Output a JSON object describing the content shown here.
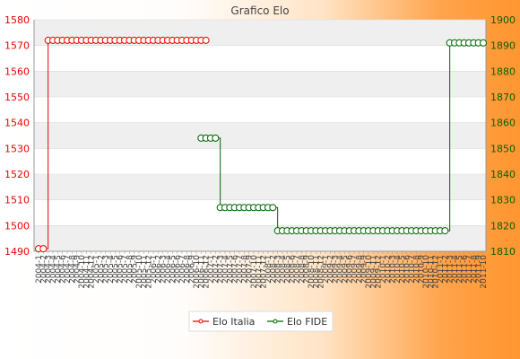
{
  "chart_data": {
    "type": "line",
    "title": "Grafico Elo",
    "yleft": {
      "lim": [
        1490,
        1580
      ],
      "ticks": [
        1490,
        1500,
        1510,
        1520,
        1530,
        1540,
        1550,
        1560,
        1570,
        1580
      ]
    },
    "yright": {
      "lim": [
        1810,
        1900
      ],
      "ticks": [
        1810,
        1820,
        1830,
        1840,
        1850,
        1860,
        1870,
        1880,
        1890,
        1900
      ]
    },
    "x_count": 94,
    "x_labels": [
      "2004-1",
      "2004-2",
      "2004-3",
      "2004-4",
      "2004-5",
      "2004-6",
      "2004-7",
      "2004-8",
      "2004-9",
      "2004-10",
      "2004-11",
      "2004-12",
      "2005-1",
      "2005-2",
      "2005-3",
      "2005-4",
      "2005-5",
      "2005-6",
      "2005-7",
      "2005-8",
      "2005-9",
      "2005-10",
      "2005-11",
      "2005-12",
      "2006-1",
      "2006-2",
      "2006-3",
      "2006-4",
      "2006-5",
      "2006-6",
      "2006-7",
      "2006-8",
      "2006-9",
      "2006-10",
      "2006-11",
      "2006-12",
      "2007-1",
      "2007-2",
      "2007-3",
      "2007-4",
      "2007-5",
      "2007-6",
      "2007-7",
      "2007-8",
      "2007-9",
      "2007-10",
      "2007-11",
      "2007-12",
      "2008-1",
      "2008-2",
      "2008-3",
      "2008-4",
      "2008-5",
      "2008-6",
      "2008-7",
      "2008-8",
      "2008-9",
      "2008-10",
      "2008-11",
      "2008-12",
      "2009-1",
      "2009-2",
      "2009-3",
      "2009-4",
      "2009-5",
      "2009-6",
      "2009-7",
      "2009-8",
      "2009-9",
      "2009-10",
      "2009-11",
      "2009-12",
      "2010-1",
      "2010-2",
      "2010-3",
      "2010-4",
      "2010-5",
      "2010-6",
      "2010-7",
      "2010-8",
      "2010-9",
      "2010-10",
      "2010-11",
      "2010-12",
      "2011-1",
      "2011-2",
      "2011-3",
      "2011-4",
      "2011-5",
      "2011-6",
      "2011-7",
      "2011-8",
      "2011-9",
      "2011-10"
    ],
    "series": [
      {
        "name": "Elo Italia",
        "axis": "left",
        "color": "#ee0000",
        "values": [
          1491,
          1491,
          1572,
          1572,
          1572,
          1572,
          1572,
          1572,
          1572,
          1572,
          1572,
          1572,
          1572,
          1572,
          1572,
          1572,
          1572,
          1572,
          1572,
          1572,
          1572,
          1572,
          1572,
          1572,
          1572,
          1572,
          1572,
          1572,
          1572,
          1572,
          1572,
          1572,
          1572,
          1572,
          1572,
          1572
        ]
      },
      {
        "name": "Elo FIDE",
        "axis": "right",
        "color": "#006400",
        "start": 34,
        "values": [
          1854,
          1854,
          1854,
          1854,
          1827,
          1827,
          1827,
          1827,
          1827,
          1827,
          1827,
          1827,
          1827,
          1827,
          1827,
          1827,
          1818,
          1818,
          1818,
          1818,
          1818,
          1818,
          1818,
          1818,
          1818,
          1818,
          1818,
          1818,
          1818,
          1818,
          1818,
          1818,
          1818,
          1818,
          1818,
          1818,
          1818,
          1818,
          1818,
          1818,
          1818,
          1818,
          1818,
          1818,
          1818,
          1818,
          1818,
          1818,
          1818,
          1818,
          1818,
          1818,
          1891,
          1891,
          1891,
          1891,
          1891,
          1891,
          1891,
          1891
        ]
      }
    ],
    "grid": true,
    "legend_position": "bottom-center"
  },
  "colors": {
    "italia": "#ee0000",
    "fide": "#006400",
    "axis": "#999999",
    "band": "#efefef"
  }
}
